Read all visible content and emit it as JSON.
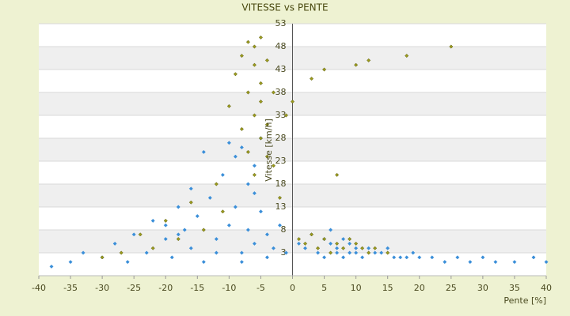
{
  "chart_data": {
    "type": "scatter",
    "title": "VITESSE vs PENTE",
    "x_label": "Pente [%]",
    "y_label": "Vitesse [km/h]",
    "xlim": [
      -40,
      40
    ],
    "xticks": [
      -40,
      -35,
      -30,
      -25,
      -20,
      -15,
      -10,
      -5,
      0,
      5,
      10,
      15,
      20,
      25,
      30,
      35,
      40
    ],
    "ylim": [
      -2,
      53
    ],
    "yticks": [
      3,
      8,
      13,
      18,
      23,
      28,
      33,
      38,
      43,
      48,
      53
    ],
    "grid": true,
    "series": [
      {
        "color": "#3b8fd9",
        "x": [
          -38,
          -35,
          -33,
          -30,
          -28,
          -26,
          -25,
          -23,
          -22,
          -20,
          -19,
          -18,
          -17,
          -16,
          -15,
          -14,
          -13,
          -12,
          -11,
          -10,
          -10,
          -9,
          -9,
          -8,
          -8,
          -7,
          -7,
          -6,
          -6,
          -5,
          -5,
          -4,
          -4,
          -3,
          -2,
          -1,
          1,
          2,
          3,
          4,
          5,
          5,
          6,
          6,
          7,
          7,
          8,
          8,
          9,
          9,
          10,
          10,
          11,
          12,
          13,
          14,
          15,
          16,
          17,
          18,
          19,
          20,
          22,
          24,
          26,
          28,
          30,
          32,
          35,
          38,
          40,
          -12,
          -14,
          -16,
          -18,
          -20,
          -8,
          -6
        ],
        "values": [
          0,
          1,
          3,
          2,
          5,
          1,
          7,
          3,
          10,
          6,
          2,
          13,
          8,
          4,
          11,
          1,
          15,
          6,
          20,
          27,
          9,
          24,
          13,
          26,
          3,
          18,
          8,
          22,
          5,
          28,
          12,
          2,
          7,
          4,
          9,
          3,
          5,
          4,
          7,
          3,
          6,
          2,
          5,
          8,
          4,
          3,
          6,
          2,
          5,
          3,
          4,
          3,
          2,
          4,
          3,
          3,
          4,
          2,
          2,
          2,
          3,
          2,
          2,
          1,
          2,
          1,
          2,
          1,
          1,
          2,
          1,
          3,
          25,
          17,
          7,
          9,
          1,
          16
        ]
      },
      {
        "color": "#9a9a1e",
        "x": [
          -9,
          -8,
          -8,
          -7,
          -7,
          -7,
          -6,
          -6,
          -6,
          -6,
          -5,
          -5,
          -5,
          -5,
          -4,
          -4,
          -4,
          -3,
          -3,
          -2,
          -10,
          -11,
          -12,
          -14,
          -16,
          -18,
          -20,
          -22,
          -24,
          -27,
          -30,
          1,
          2,
          3,
          4,
          5,
          6,
          7,
          8,
          9,
          10,
          11,
          12,
          13,
          15,
          3,
          5,
          7,
          10,
          12,
          18,
          25,
          -1,
          0
        ],
        "values": [
          42,
          30,
          46,
          38,
          49,
          25,
          44,
          33,
          48,
          20,
          50,
          40,
          28,
          36,
          45,
          31,
          24,
          38,
          22,
          15,
          35,
          12,
          18,
          8,
          14,
          6,
          10,
          4,
          7,
          3,
          2,
          6,
          5,
          7,
          4,
          6,
          3,
          5,
          4,
          6,
          5,
          4,
          3,
          4,
          3,
          41,
          43,
          20,
          44,
          45,
          46,
          48,
          33,
          36
        ]
      }
    ]
  }
}
